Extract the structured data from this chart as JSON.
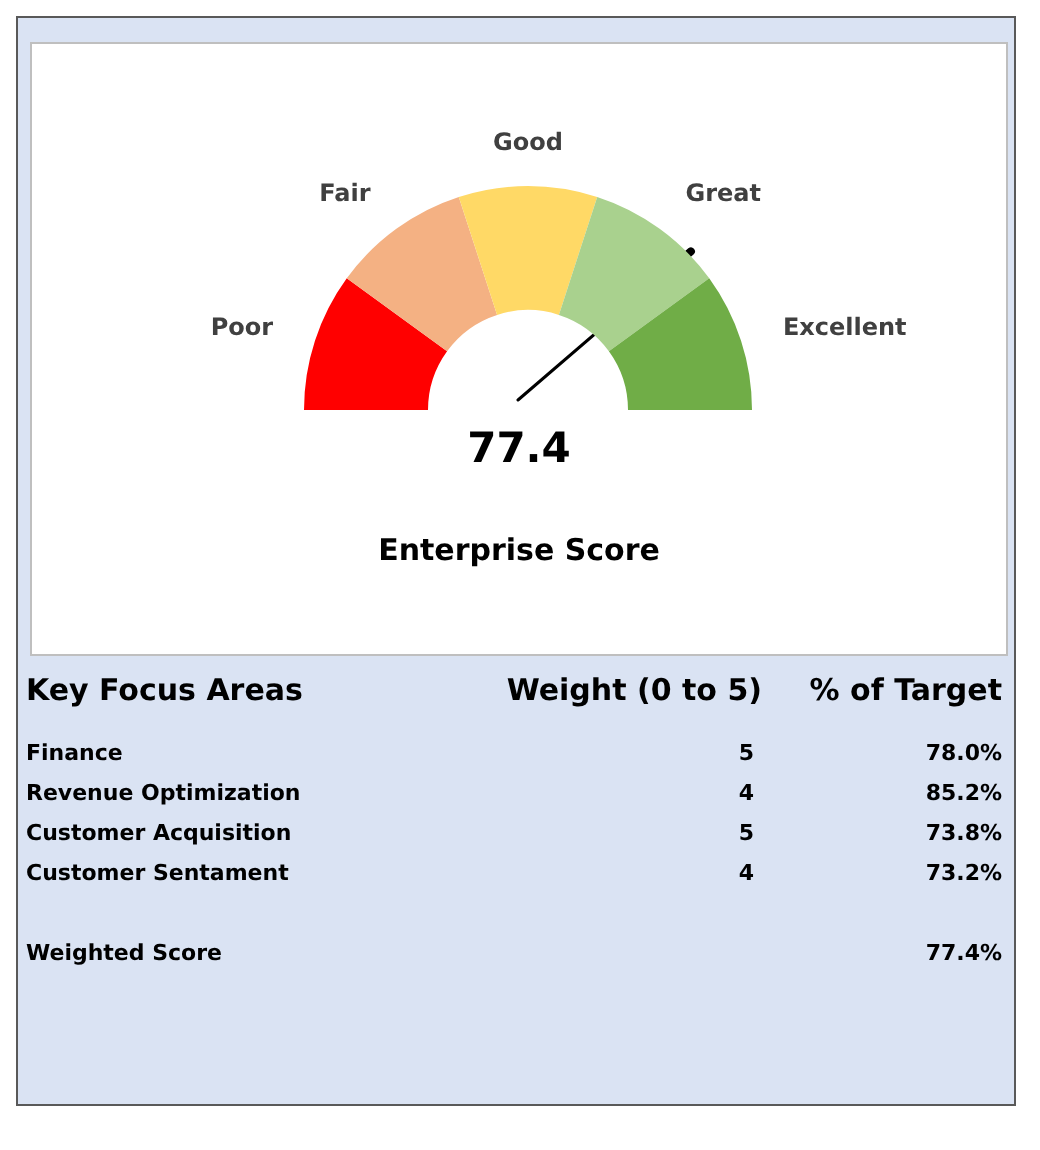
{
  "chart_data": [
    {
      "type": "donut",
      "title": "Enterprise Score",
      "annotations": [
        "77.4"
      ],
      "categories": [
        "Poor",
        "Fair",
        "Good",
        "Great",
        "Excellent"
      ],
      "values": [
        20,
        20,
        20,
        20,
        20
      ],
      "colors": [
        "#ff0000",
        "#f4b183",
        "#ffd966",
        "#a9d18e",
        "#70ad47"
      ],
      "needle": "Great"
    },
    {
      "type": "other",
      "title": "Key Focus Areas",
      "data_labels": true,
      "categories": [
        "Finance",
        "Revenue Optimization",
        "Customer Acquisition",
        "Customer Sentament",
        null,
        "Weighted Score"
      ],
      "series": [
        {
          "name": "Weight  (0 to 5)",
          "values": [
            5,
            4,
            5,
            4,
            null,
            null
          ]
        },
        {
          "name": "% of Target",
          "values": [
            78.0,
            85.2,
            73.8,
            73.2,
            null,
            77.4
          ],
          "value_labels": [
            "78.0%",
            "85.2%",
            "73.8%",
            "73.2%",
            null,
            "77.4%"
          ]
        }
      ]
    }
  ]
}
